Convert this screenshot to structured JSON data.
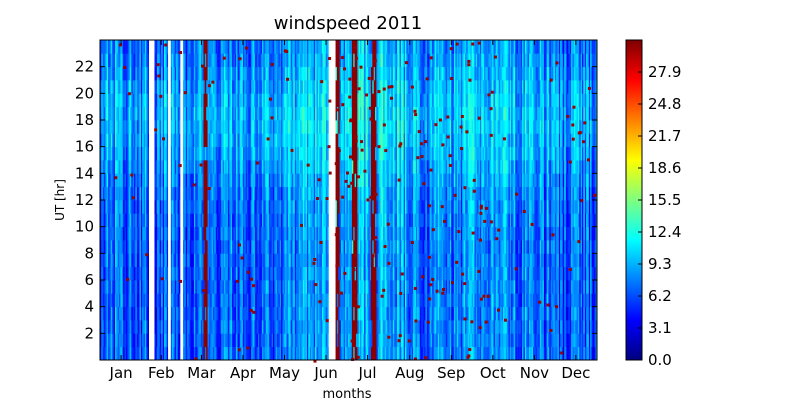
{
  "chart_data": {
    "type": "heatmap",
    "title": "windspeed 2011",
    "xlabel": "months",
    "ylabel": "UT [hr]",
    "x_ticks": [
      "Jan",
      "Feb",
      "Mar",
      "Apr",
      "May",
      "Jun",
      "Jul",
      "Aug",
      "Sep",
      "Oct",
      "Nov",
      "Dec"
    ],
    "y_ticks": [
      2,
      4,
      6,
      8,
      10,
      12,
      14,
      16,
      18,
      20,
      22
    ],
    "ylim": [
      0,
      24
    ],
    "xlim_days": [
      1,
      365
    ],
    "colorbar": {
      "colormap": "jet",
      "range": [
        0.0,
        31.0
      ],
      "tick_values": [
        0.0,
        3.1,
        6.2,
        9.3,
        12.4,
        15.5,
        18.6,
        21.7,
        24.8,
        27.9
      ],
      "tick_labels": [
        "0.0",
        "3.1",
        "6.2",
        "9.3",
        "12.4",
        "15.5",
        "18.6",
        "21.7",
        "24.8",
        "27.9"
      ]
    },
    "data_gaps_day_ranges": [
      [
        37,
        40
      ],
      [
        51,
        52
      ],
      [
        60,
        61
      ],
      [
        169,
        173
      ]
    ],
    "saturated_day_ranges": [
      [
        77,
        79
      ],
      [
        172,
        176
      ],
      [
        186,
        189
      ],
      [
        200,
        203
      ]
    ]
  }
}
